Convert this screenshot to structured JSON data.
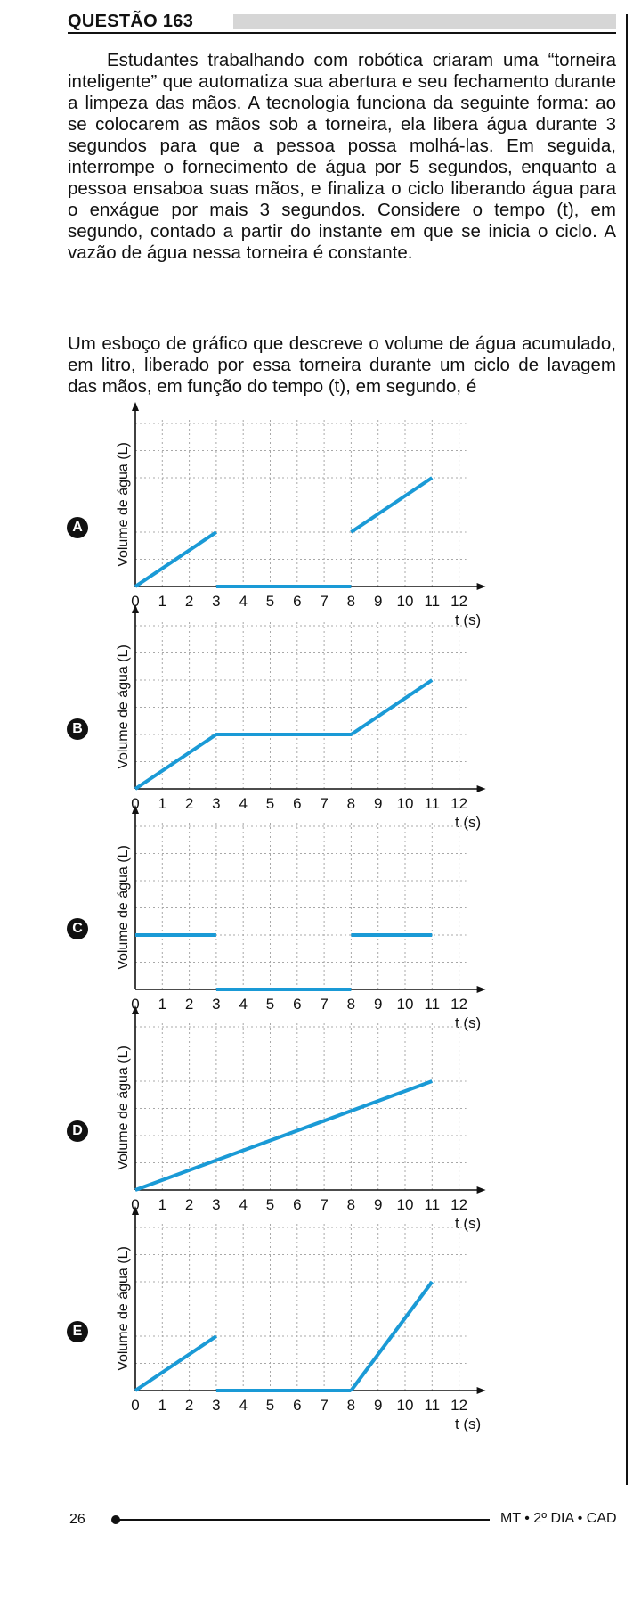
{
  "question": {
    "title": "QUESTÃO 163",
    "paragraph1": "Estudantes trabalhando com robótica criaram uma “torneira inteligente” que automatiza sua abertura e seu fechamento durante a limpeza das mãos. A tecnologia funciona da seguinte forma: ao se colocarem as mãos sob a torneira, ela libera água durante 3 segundos para que a pessoa possa molhá-las. Em seguida, interrompe o fornecimento de água por 5 segundos, enquanto a pessoa ensaboa suas mãos, e finaliza o ciclo liberando água para o enxágue por mais 3 segundos. Considere o tempo (t), em segundo, contado a partir do instante em que se inicia o ciclo. A vazão de água nessa torneira é constante.",
    "paragraph2": "Um esboço de gráfico que descreve o volume de água acumulado, em litro, liberado por essa torneira durante um ciclo de lavagem das mãos, em função do tempo (t), em segundo, é"
  },
  "colors": {
    "line": "#1a9ad6",
    "grid": "#a8a8a8",
    "axis": "#111111",
    "badge": "#111111"
  },
  "options": [
    {
      "letter": "A"
    },
    {
      "letter": "B"
    },
    {
      "letter": "C"
    },
    {
      "letter": "D"
    },
    {
      "letter": "E"
    }
  ],
  "chart_data": [
    {
      "type": "line",
      "option": "A",
      "ylabel": "Volume de água (L)",
      "xlabel": "t (s)",
      "x_ticks": [
        "0",
        "1",
        "2",
        "3",
        "4",
        "5",
        "6",
        "7",
        "8",
        "9",
        "10",
        "11",
        "12"
      ],
      "xlim": [
        0,
        12
      ],
      "ylim": [
        0,
        6
      ],
      "y_ticks_labeled": false,
      "grid": true,
      "segments": [
        [
          [
            0,
            0
          ],
          [
            3,
            2
          ]
        ],
        [
          [
            3,
            0
          ],
          [
            8,
            0
          ]
        ],
        [
          [
            8,
            2
          ],
          [
            11,
            4
          ]
        ]
      ]
    },
    {
      "type": "line",
      "option": "B",
      "ylabel": "Volume de água (L)",
      "xlabel": "t (s)",
      "x_ticks": [
        "0",
        "1",
        "2",
        "3",
        "4",
        "5",
        "6",
        "7",
        "8",
        "9",
        "10",
        "11",
        "12"
      ],
      "xlim": [
        0,
        12
      ],
      "ylim": [
        0,
        6
      ],
      "y_ticks_labeled": false,
      "grid": true,
      "segments": [
        [
          [
            0,
            0
          ],
          [
            3,
            2
          ],
          [
            8,
            2
          ],
          [
            11,
            4
          ]
        ]
      ]
    },
    {
      "type": "line",
      "option": "C",
      "ylabel": "Volume de água (L)",
      "xlabel": "t (s)",
      "x_ticks": [
        "0",
        "1",
        "2",
        "3",
        "4",
        "5",
        "6",
        "7",
        "8",
        "9",
        "10",
        "11",
        "12"
      ],
      "xlim": [
        0,
        12
      ],
      "ylim": [
        0,
        6
      ],
      "y_ticks_labeled": false,
      "grid": true,
      "segments": [
        [
          [
            0,
            2
          ],
          [
            3,
            2
          ]
        ],
        [
          [
            3,
            0
          ],
          [
            8,
            0
          ]
        ],
        [
          [
            8,
            2
          ],
          [
            11,
            2
          ]
        ]
      ]
    },
    {
      "type": "line",
      "option": "D",
      "ylabel": "Volume de água (L)",
      "xlabel": "t (s)",
      "x_ticks": [
        "0",
        "1",
        "2",
        "3",
        "4",
        "5",
        "6",
        "7",
        "8",
        "9",
        "10",
        "11",
        "12"
      ],
      "xlim": [
        0,
        12
      ],
      "ylim": [
        0,
        6
      ],
      "y_ticks_labeled": false,
      "grid": true,
      "segments": [
        [
          [
            0,
            0
          ],
          [
            11,
            4
          ]
        ]
      ]
    },
    {
      "type": "line",
      "option": "E",
      "ylabel": "Volume de água (L)",
      "xlabel": "t (s)",
      "x_ticks": [
        "0",
        "1",
        "2",
        "3",
        "4",
        "5",
        "6",
        "7",
        "8",
        "9",
        "10",
        "11",
        "12"
      ],
      "xlim": [
        0,
        12
      ],
      "ylim": [
        0,
        6
      ],
      "y_ticks_labeled": false,
      "grid": true,
      "segments": [
        [
          [
            0,
            0
          ],
          [
            3,
            2
          ]
        ],
        [
          [
            3,
            0
          ],
          [
            8,
            0
          ]
        ],
        [
          [
            8,
            0
          ],
          [
            11,
            4
          ]
        ]
      ]
    }
  ],
  "footer": {
    "page_number": "26",
    "text": "MT • 2º DIA • CAD"
  }
}
